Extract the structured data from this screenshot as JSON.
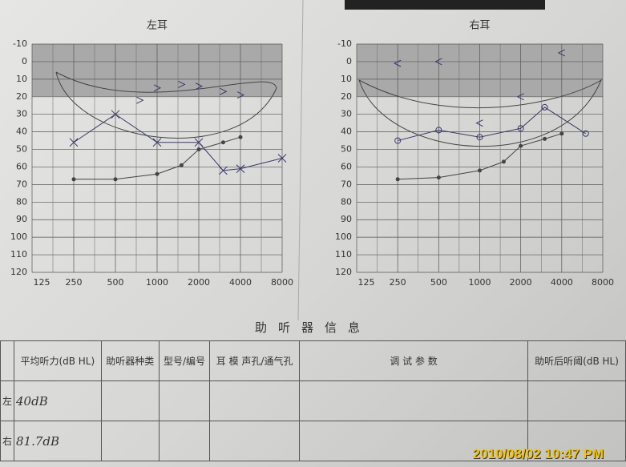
{
  "chart_data": [
    {
      "type": "line",
      "title": "左耳",
      "x_scale": "log",
      "xlim": [
        125,
        8000
      ],
      "xticks": [
        125,
        250,
        500,
        1000,
        2000,
        4000,
        8000
      ],
      "ylim": [
        -10,
        120
      ],
      "y_inverted": true,
      "yticks": [
        -10,
        0,
        10,
        20,
        30,
        40,
        50,
        60,
        70,
        80,
        90,
        100,
        110,
        120
      ],
      "grid": true,
      "series": [
        {
          "marker": "dot",
          "line": true,
          "color": "#444",
          "x": [
            250,
            500,
            1000,
            1500,
            2000,
            3000,
            4000
          ],
          "values": [
            67,
            67,
            64,
            59,
            50,
            46,
            43
          ]
        },
        {
          "marker": "x",
          "line": true,
          "color": "#3a3a6a",
          "x": [
            250,
            500,
            1000,
            2000,
            3000,
            4000,
            8000
          ],
          "values": [
            46,
            30,
            46,
            46,
            62,
            61,
            55
          ]
        },
        {
          "marker": ">",
          "line": false,
          "color": "#3a3a6a",
          "x": [
            750,
            1000,
            1500,
            2000,
            3000,
            4000
          ],
          "values": [
            22,
            15,
            13,
            14,
            17,
            19
          ]
        }
      ]
    },
    {
      "type": "line",
      "title": "右耳",
      "x_scale": "log",
      "xlim": [
        125,
        8000
      ],
      "xticks": [
        125,
        250,
        500,
        1000,
        2000,
        4000,
        8000
      ],
      "ylim": [
        -10,
        120
      ],
      "y_inverted": true,
      "yticks": [
        -10,
        0,
        10,
        20,
        30,
        40,
        50,
        60,
        70,
        80,
        90,
        100,
        110,
        120
      ],
      "grid": true,
      "series": [
        {
          "marker": "dot",
          "line": true,
          "color": "#444",
          "x": [
            250,
            500,
            1000,
            1500,
            2000,
            3000,
            4000
          ],
          "values": [
            67,
            66,
            62,
            57,
            48,
            44,
            41
          ]
        },
        {
          "marker": "o",
          "line": true,
          "color": "#3a3a6a",
          "x": [
            250,
            500,
            1000,
            2000,
            3000,
            6000
          ],
          "values": [
            45,
            39,
            43,
            38,
            26,
            41
          ]
        },
        {
          "marker": "<",
          "line": false,
          "color": "#3a3a6a",
          "x": [
            250,
            500,
            1000,
            2000,
            4000
          ],
          "values": [
            1,
            0,
            35,
            20,
            -5
          ]
        }
      ]
    }
  ],
  "table": {
    "title": "助听器信息",
    "header": [
      "平均听力(dB HL)",
      "助听器种类",
      "型号/编号",
      "耳 模 声孔/通气孔",
      "调 试 参 数",
      "助听后听阈(dB HL)"
    ],
    "rows": [
      [
        "左",
        "40dB"
      ],
      [
        "右",
        "81.7dB"
      ]
    ]
  },
  "timestamp": "2010/08/02 10:47 PM"
}
